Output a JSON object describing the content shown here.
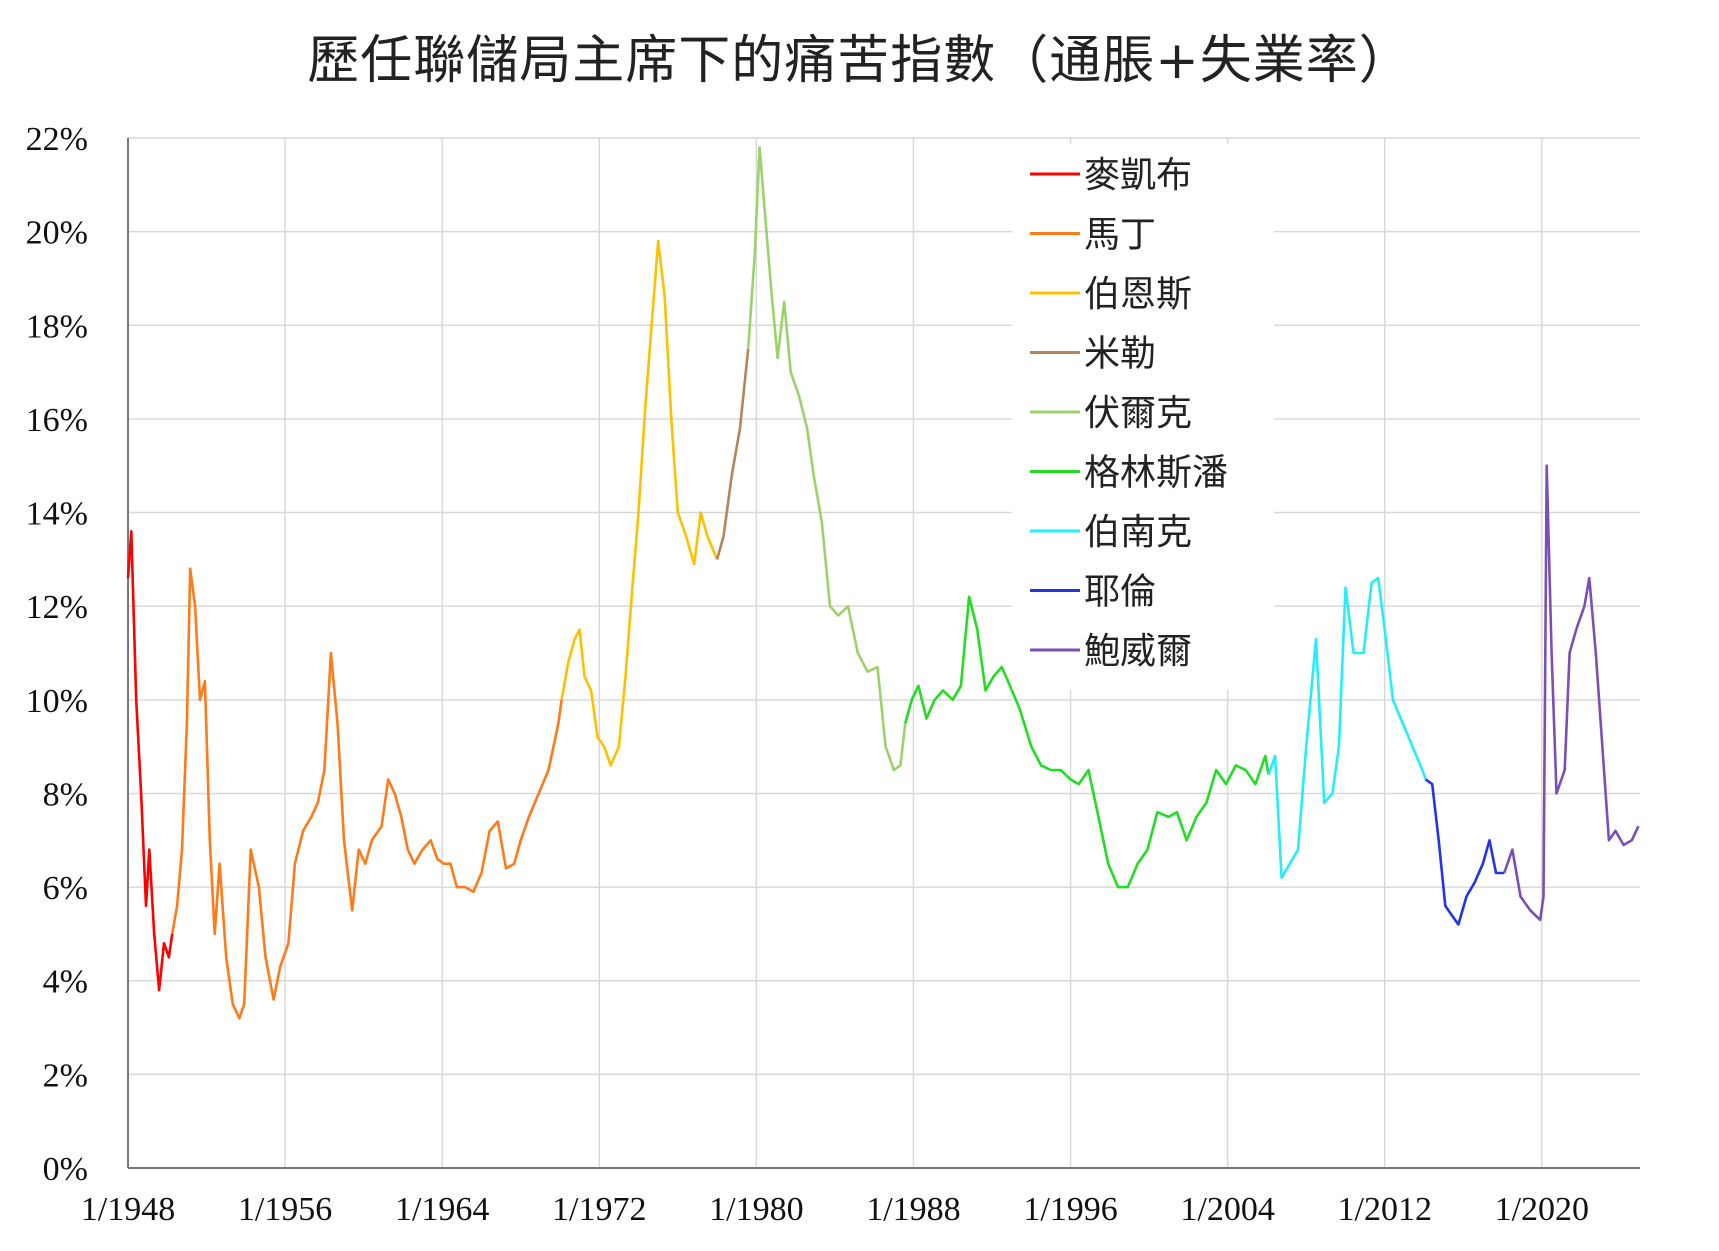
{
  "chart_data": {
    "type": "line",
    "title": "歷任聯儲局主席下的痛苦指數（通脹+失業率）",
    "xlabel": "",
    "ylabel": "",
    "x_range": [
      "1948-01",
      "2024-12"
    ],
    "ylim": [
      0,
      22
    ],
    "y_ticks": [
      "0%",
      "2%",
      "4%",
      "6%",
      "8%",
      "10%",
      "12%",
      "14%",
      "16%",
      "18%",
      "20%",
      "22%"
    ],
    "x_ticks": [
      "1/1948",
      "1/1956",
      "1/1964",
      "1/1972",
      "1/1980",
      "1/1988",
      "1/1996",
      "1/2004",
      "1/2012",
      "1/2020"
    ],
    "grid": true,
    "legend_position": "top-right",
    "series": [
      {
        "name": "麥凱布",
        "color": "#ff0000",
        "points": [
          [
            "1948-01",
            12.6
          ],
          [
            "1948-03",
            13.6
          ],
          [
            "1948-06",
            10.0
          ],
          [
            "1948-09",
            8.0
          ],
          [
            "1948-12",
            5.6
          ],
          [
            "1949-02",
            6.8
          ],
          [
            "1949-05",
            5.0
          ],
          [
            "1949-08",
            3.8
          ],
          [
            "1949-11",
            4.8
          ],
          [
            "1950-02",
            4.5
          ],
          [
            "1950-04",
            5.0
          ]
        ]
      },
      {
        "name": "馬丁",
        "color": "#ff7a1a",
        "points": [
          [
            "1950-04",
            5.0
          ],
          [
            "1950-07",
            5.6
          ],
          [
            "1950-10",
            6.8
          ],
          [
            "1951-01",
            9.5
          ],
          [
            "1951-03",
            12.8
          ],
          [
            "1951-06",
            12.0
          ],
          [
            "1951-09",
            10.0
          ],
          [
            "1951-12",
            10.4
          ],
          [
            "1952-03",
            7.0
          ],
          [
            "1952-06",
            5.0
          ],
          [
            "1952-09",
            6.5
          ],
          [
            "1953-01",
            4.5
          ],
          [
            "1953-05",
            3.5
          ],
          [
            "1953-09",
            3.2
          ],
          [
            "1953-12",
            3.5
          ],
          [
            "1954-04",
            6.8
          ],
          [
            "1954-09",
            6.0
          ],
          [
            "1955-01",
            4.5
          ],
          [
            "1955-06",
            3.6
          ],
          [
            "1955-10",
            4.3
          ],
          [
            "1956-03",
            4.8
          ],
          [
            "1956-07",
            6.5
          ],
          [
            "1956-12",
            7.2
          ],
          [
            "1957-05",
            7.5
          ],
          [
            "1957-09",
            7.8
          ],
          [
            "1958-01",
            8.5
          ],
          [
            "1958-05",
            11.0
          ],
          [
            "1958-09",
            9.5
          ],
          [
            "1959-01",
            7.0
          ],
          [
            "1959-06",
            5.5
          ],
          [
            "1959-10",
            6.8
          ],
          [
            "1960-02",
            6.5
          ],
          [
            "1960-06",
            7.0
          ],
          [
            "1960-12",
            7.3
          ],
          [
            "1961-04",
            8.3
          ],
          [
            "1961-08",
            8.0
          ],
          [
            "1961-12",
            7.5
          ],
          [
            "1962-04",
            6.8
          ],
          [
            "1962-08",
            6.5
          ],
          [
            "1963-01",
            6.8
          ],
          [
            "1963-06",
            7.0
          ],
          [
            "1963-10",
            6.6
          ],
          [
            "1964-02",
            6.5
          ],
          [
            "1964-06",
            6.5
          ],
          [
            "1964-10",
            6.0
          ],
          [
            "1965-03",
            6.0
          ],
          [
            "1965-08",
            5.9
          ],
          [
            "1966-01",
            6.3
          ],
          [
            "1966-06",
            7.2
          ],
          [
            "1966-11",
            7.4
          ],
          [
            "1967-04",
            6.4
          ],
          [
            "1967-09",
            6.5
          ],
          [
            "1968-01",
            7.0
          ],
          [
            "1968-06",
            7.5
          ],
          [
            "1968-12",
            8.0
          ],
          [
            "1969-06",
            8.5
          ],
          [
            "1969-12",
            9.5
          ],
          [
            "1970-02",
            10.0
          ]
        ]
      },
      {
        "name": "伯恩斯",
        "color": "#ffc000",
        "points": [
          [
            "1970-02",
            10.0
          ],
          [
            "1970-06",
            10.8
          ],
          [
            "1970-10",
            11.3
          ],
          [
            "1971-01",
            11.5
          ],
          [
            "1971-04",
            10.5
          ],
          [
            "1971-08",
            10.2
          ],
          [
            "1971-12",
            9.2
          ],
          [
            "1972-04",
            9.0
          ],
          [
            "1972-08",
            8.6
          ],
          [
            "1973-01",
            9.0
          ],
          [
            "1973-05",
            10.5
          ],
          [
            "1973-09",
            12.3
          ],
          [
            "1974-01",
            14.0
          ],
          [
            "1974-05",
            16.2
          ],
          [
            "1974-09",
            18.0
          ],
          [
            "1975-01",
            19.8
          ],
          [
            "1975-05",
            18.6
          ],
          [
            "1975-09",
            16.0
          ],
          [
            "1976-01",
            14.0
          ],
          [
            "1976-06",
            13.5
          ],
          [
            "1976-11",
            12.9
          ],
          [
            "1977-03",
            14.0
          ],
          [
            "1977-07",
            13.5
          ],
          [
            "1978-01",
            13.0
          ]
        ]
      },
      {
        "name": "米勒",
        "color": "#b5845a",
        "points": [
          [
            "1978-01",
            13.0
          ],
          [
            "1978-05",
            13.5
          ],
          [
            "1978-10",
            14.8
          ],
          [
            "1979-03",
            15.8
          ],
          [
            "1979-08",
            17.5
          ]
        ]
      },
      {
        "name": "伏爾克",
        "color": "#9bd36b",
        "points": [
          [
            "1979-08",
            17.5
          ],
          [
            "1979-12",
            19.5
          ],
          [
            "1980-03",
            21.8
          ],
          [
            "1980-06",
            20.5
          ],
          [
            "1980-10",
            18.8
          ],
          [
            "1981-02",
            17.3
          ],
          [
            "1981-06",
            18.5
          ],
          [
            "1981-10",
            17.0
          ],
          [
            "1982-03",
            16.5
          ],
          [
            "1982-08",
            15.8
          ],
          [
            "1982-12",
            14.8
          ],
          [
            "1983-05",
            13.8
          ],
          [
            "1983-10",
            12.0
          ],
          [
            "1984-03",
            11.8
          ],
          [
            "1984-09",
            12.0
          ],
          [
            "1985-03",
            11.0
          ],
          [
            "1985-09",
            10.6
          ],
          [
            "1986-03",
            10.7
          ],
          [
            "1986-08",
            9.0
          ],
          [
            "1987-01",
            8.5
          ],
          [
            "1987-05",
            8.6
          ],
          [
            "1987-08",
            9.5
          ]
        ]
      },
      {
        "name": "格林斯潘",
        "color": "#22dd22",
        "points": [
          [
            "1987-08",
            9.5
          ],
          [
            "1987-12",
            10.0
          ],
          [
            "1988-04",
            10.3
          ],
          [
            "1988-09",
            9.6
          ],
          [
            "1989-02",
            10.0
          ],
          [
            "1989-07",
            10.2
          ],
          [
            "1990-01",
            10.0
          ],
          [
            "1990-06",
            10.3
          ],
          [
            "1990-11",
            12.2
          ],
          [
            "1991-04",
            11.5
          ],
          [
            "1991-09",
            10.2
          ],
          [
            "1992-02",
            10.5
          ],
          [
            "1992-07",
            10.7
          ],
          [
            "1992-12",
            10.3
          ],
          [
            "1993-06",
            9.8
          ],
          [
            "1994-01",
            9.0
          ],
          [
            "1994-07",
            8.6
          ],
          [
            "1995-01",
            8.5
          ],
          [
            "1995-07",
            8.5
          ],
          [
            "1996-01",
            8.3
          ],
          [
            "1996-06",
            8.2
          ],
          [
            "1996-12",
            8.5
          ],
          [
            "1997-06",
            7.5
          ],
          [
            "1997-12",
            6.5
          ],
          [
            "1998-06",
            6.0
          ],
          [
            "1998-12",
            6.0
          ],
          [
            "1999-06",
            6.5
          ],
          [
            "1999-12",
            6.8
          ],
          [
            "2000-06",
            7.6
          ],
          [
            "2001-01",
            7.5
          ],
          [
            "2001-06",
            7.6
          ],
          [
            "2001-12",
            7.0
          ],
          [
            "2002-06",
            7.5
          ],
          [
            "2002-12",
            7.8
          ],
          [
            "2003-06",
            8.5
          ],
          [
            "2003-12",
            8.2
          ],
          [
            "2004-06",
            8.6
          ],
          [
            "2004-12",
            8.5
          ],
          [
            "2005-06",
            8.2
          ],
          [
            "2005-12",
            8.8
          ],
          [
            "2006-02",
            8.4
          ]
        ]
      },
      {
        "name": "伯南克",
        "color": "#22eeff",
        "points": [
          [
            "2006-02",
            8.4
          ],
          [
            "2006-06",
            8.8
          ],
          [
            "2006-10",
            6.2
          ],
          [
            "2007-03",
            6.5
          ],
          [
            "2007-08",
            6.8
          ],
          [
            "2008-01",
            9.0
          ],
          [
            "2008-07",
            11.3
          ],
          [
            "2008-12",
            7.8
          ],
          [
            "2009-05",
            8.0
          ],
          [
            "2009-09",
            9.0
          ],
          [
            "2010-01",
            12.4
          ],
          [
            "2010-06",
            11.0
          ],
          [
            "2010-12",
            11.0
          ],
          [
            "2011-05",
            12.5
          ],
          [
            "2011-09",
            12.6
          ],
          [
            "2012-01",
            11.5
          ],
          [
            "2012-06",
            10.0
          ],
          [
            "2012-12",
            9.5
          ],
          [
            "2013-06",
            9.0
          ],
          [
            "2013-12",
            8.5
          ],
          [
            "2014-02",
            8.3
          ]
        ]
      },
      {
        "name": "耶倫",
        "color": "#2233ee",
        "points": [
          [
            "2014-02",
            8.3
          ],
          [
            "2014-06",
            8.2
          ],
          [
            "2014-10",
            7.0
          ],
          [
            "2015-02",
            5.6
          ],
          [
            "2015-06",
            5.4
          ],
          [
            "2015-10",
            5.2
          ],
          [
            "2016-03",
            5.8
          ],
          [
            "2016-08",
            6.1
          ],
          [
            "2017-01",
            6.5
          ],
          [
            "2017-05",
            7.0
          ],
          [
            "2017-09",
            6.3
          ],
          [
            "2018-02",
            6.3
          ]
        ]
      },
      {
        "name": "鮑威爾",
        "color": "#7b4fb5",
        "points": [
          [
            "2018-02",
            6.3
          ],
          [
            "2018-07",
            6.8
          ],
          [
            "2018-12",
            5.8
          ],
          [
            "2019-06",
            5.5
          ],
          [
            "2019-12",
            5.3
          ],
          [
            "2020-02",
            5.8
          ],
          [
            "2020-04",
            15.0
          ],
          [
            "2020-07",
            11.0
          ],
          [
            "2020-10",
            8.0
          ],
          [
            "2021-03",
            8.5
          ],
          [
            "2021-06",
            11.0
          ],
          [
            "2021-10",
            11.5
          ],
          [
            "2022-03",
            12.0
          ],
          [
            "2022-06",
            12.6
          ],
          [
            "2022-10",
            11.0
          ],
          [
            "2023-03",
            8.5
          ],
          [
            "2023-06",
            7.0
          ],
          [
            "2023-10",
            7.2
          ],
          [
            "2024-03",
            6.9
          ],
          [
            "2024-08",
            7.0
          ],
          [
            "2024-12",
            7.3
          ]
        ]
      }
    ]
  }
}
